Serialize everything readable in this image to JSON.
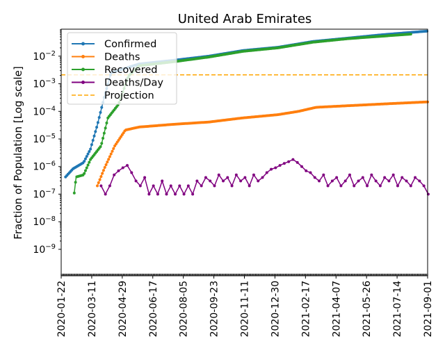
{
  "chart_data": {
    "type": "line",
    "title": "United Arab Emirates",
    "xlabel": "",
    "ylabel": "Fraction of Population [Log scale]",
    "yscale": "log",
    "ylim": [
      1.1e-10,
      0.095
    ],
    "start_date": "2020-01-22",
    "x_unit": "days since start_date",
    "xlim_days": [
      0,
      588
    ],
    "x_ticks": [
      {
        "day": 0,
        "label": "2020-01-22"
      },
      {
        "day": 49,
        "label": "2020-03-11"
      },
      {
        "day": 98,
        "label": "2020-04-29"
      },
      {
        "day": 147,
        "label": "2020-06-17"
      },
      {
        "day": 196,
        "label": "2020-08-05"
      },
      {
        "day": 245,
        "label": "2020-09-23"
      },
      {
        "day": 294,
        "label": "2020-11-11"
      },
      {
        "day": 343,
        "label": "2020-12-30"
      },
      {
        "day": 392,
        "label": "2021-02-17"
      },
      {
        "day": 441,
        "label": "2021-04-07"
      },
      {
        "day": 490,
        "label": "2021-05-26"
      },
      {
        "day": 539,
        "label": "2021-07-14"
      },
      {
        "day": 588,
        "label": "2021-09-01"
      }
    ],
    "y_ticks": [
      {
        "exp": -2,
        "base": "10",
        "sup": "−2"
      },
      {
        "exp": -3,
        "base": "10",
        "sup": "−3"
      },
      {
        "exp": -4,
        "base": "10",
        "sup": "−4"
      },
      {
        "exp": -5,
        "base": "10",
        "sup": "−5"
      },
      {
        "exp": -6,
        "base": "10",
        "sup": "−6"
      },
      {
        "exp": -7,
        "base": "10",
        "sup": "−7"
      },
      {
        "exp": -8,
        "base": "10",
        "sup": "−8"
      },
      {
        "exp": -9,
        "base": "10",
        "sup": "−9"
      }
    ],
    "legend_position": "upper-left",
    "series": [
      {
        "name": "Confirmed",
        "color": "#1f77b4",
        "style": "line-marker",
        "days": [
          7,
          19,
          36,
          47,
          58,
          69,
          80,
          125,
          181,
          237,
          292,
          348,
          404,
          460,
          516,
          588
        ],
        "values": [
          4.2e-07,
          8.3e-07,
          1.4e-06,
          4.3e-06,
          3.2e-05,
          0.00032,
          0.0025,
          0.0052,
          0.0071,
          0.01,
          0.016,
          0.021,
          0.034,
          0.045,
          0.06,
          0.081
        ]
      },
      {
        "name": "Deaths",
        "color": "#ff7f0e",
        "style": "line-marker",
        "days": [
          58,
          69,
          86,
          103,
          125,
          181,
          237,
          292,
          348,
          381,
          409,
          460,
          527,
          588
        ],
        "values": [
          2e-07,
          8.3e-07,
          5.6e-06,
          2.1e-05,
          2.7e-05,
          3.4e-05,
          4.1e-05,
          5.8e-05,
          7.6e-05,
          0.0001,
          0.00014,
          0.00016,
          0.00019,
          0.00022
        ]
      },
      {
        "name": "Recovered",
        "color": "#2ca02c",
        "style": "line-marker",
        "days": [
          21,
          24,
          36,
          47,
          64,
          75,
          92,
          108,
          125,
          181,
          237,
          292,
          348,
          404,
          460,
          561
        ],
        "values": [
          1.1e-07,
          4.2e-07,
          5e-07,
          1.8e-06,
          5.6e-06,
          5.8e-05,
          0.00018,
          0.0019,
          0.0045,
          0.0063,
          0.0093,
          0.015,
          0.02,
          0.032,
          0.043,
          0.063
        ]
      },
      {
        "name": "Deaths/Day",
        "color": "#800080",
        "style": "line-marker",
        "start_day": 64,
        "step_days": 7,
        "value_multiplier": 1e-07,
        "values": [
          2,
          1,
          2,
          5,
          7,
          9,
          11,
          6,
          3,
          2,
          4,
          1,
          2,
          1,
          3,
          1,
          2,
          1,
          2,
          1,
          2,
          1,
          3,
          2,
          4,
          3,
          2,
          5,
          3,
          4,
          2,
          5,
          3,
          4,
          2,
          5,
          3,
          4,
          6,
          8,
          9,
          11,
          13,
          15,
          18,
          14,
          10,
          7,
          6,
          4,
          3,
          5,
          2,
          3,
          4,
          2,
          3,
          5,
          2,
          3,
          4,
          2,
          5,
          3,
          2,
          4,
          3,
          5,
          2,
          4,
          3,
          2,
          4,
          3,
          2,
          1
        ]
      },
      {
        "name": "Projection",
        "color": "#ffa500",
        "style": "dashed",
        "value": 0.0021
      }
    ]
  }
}
